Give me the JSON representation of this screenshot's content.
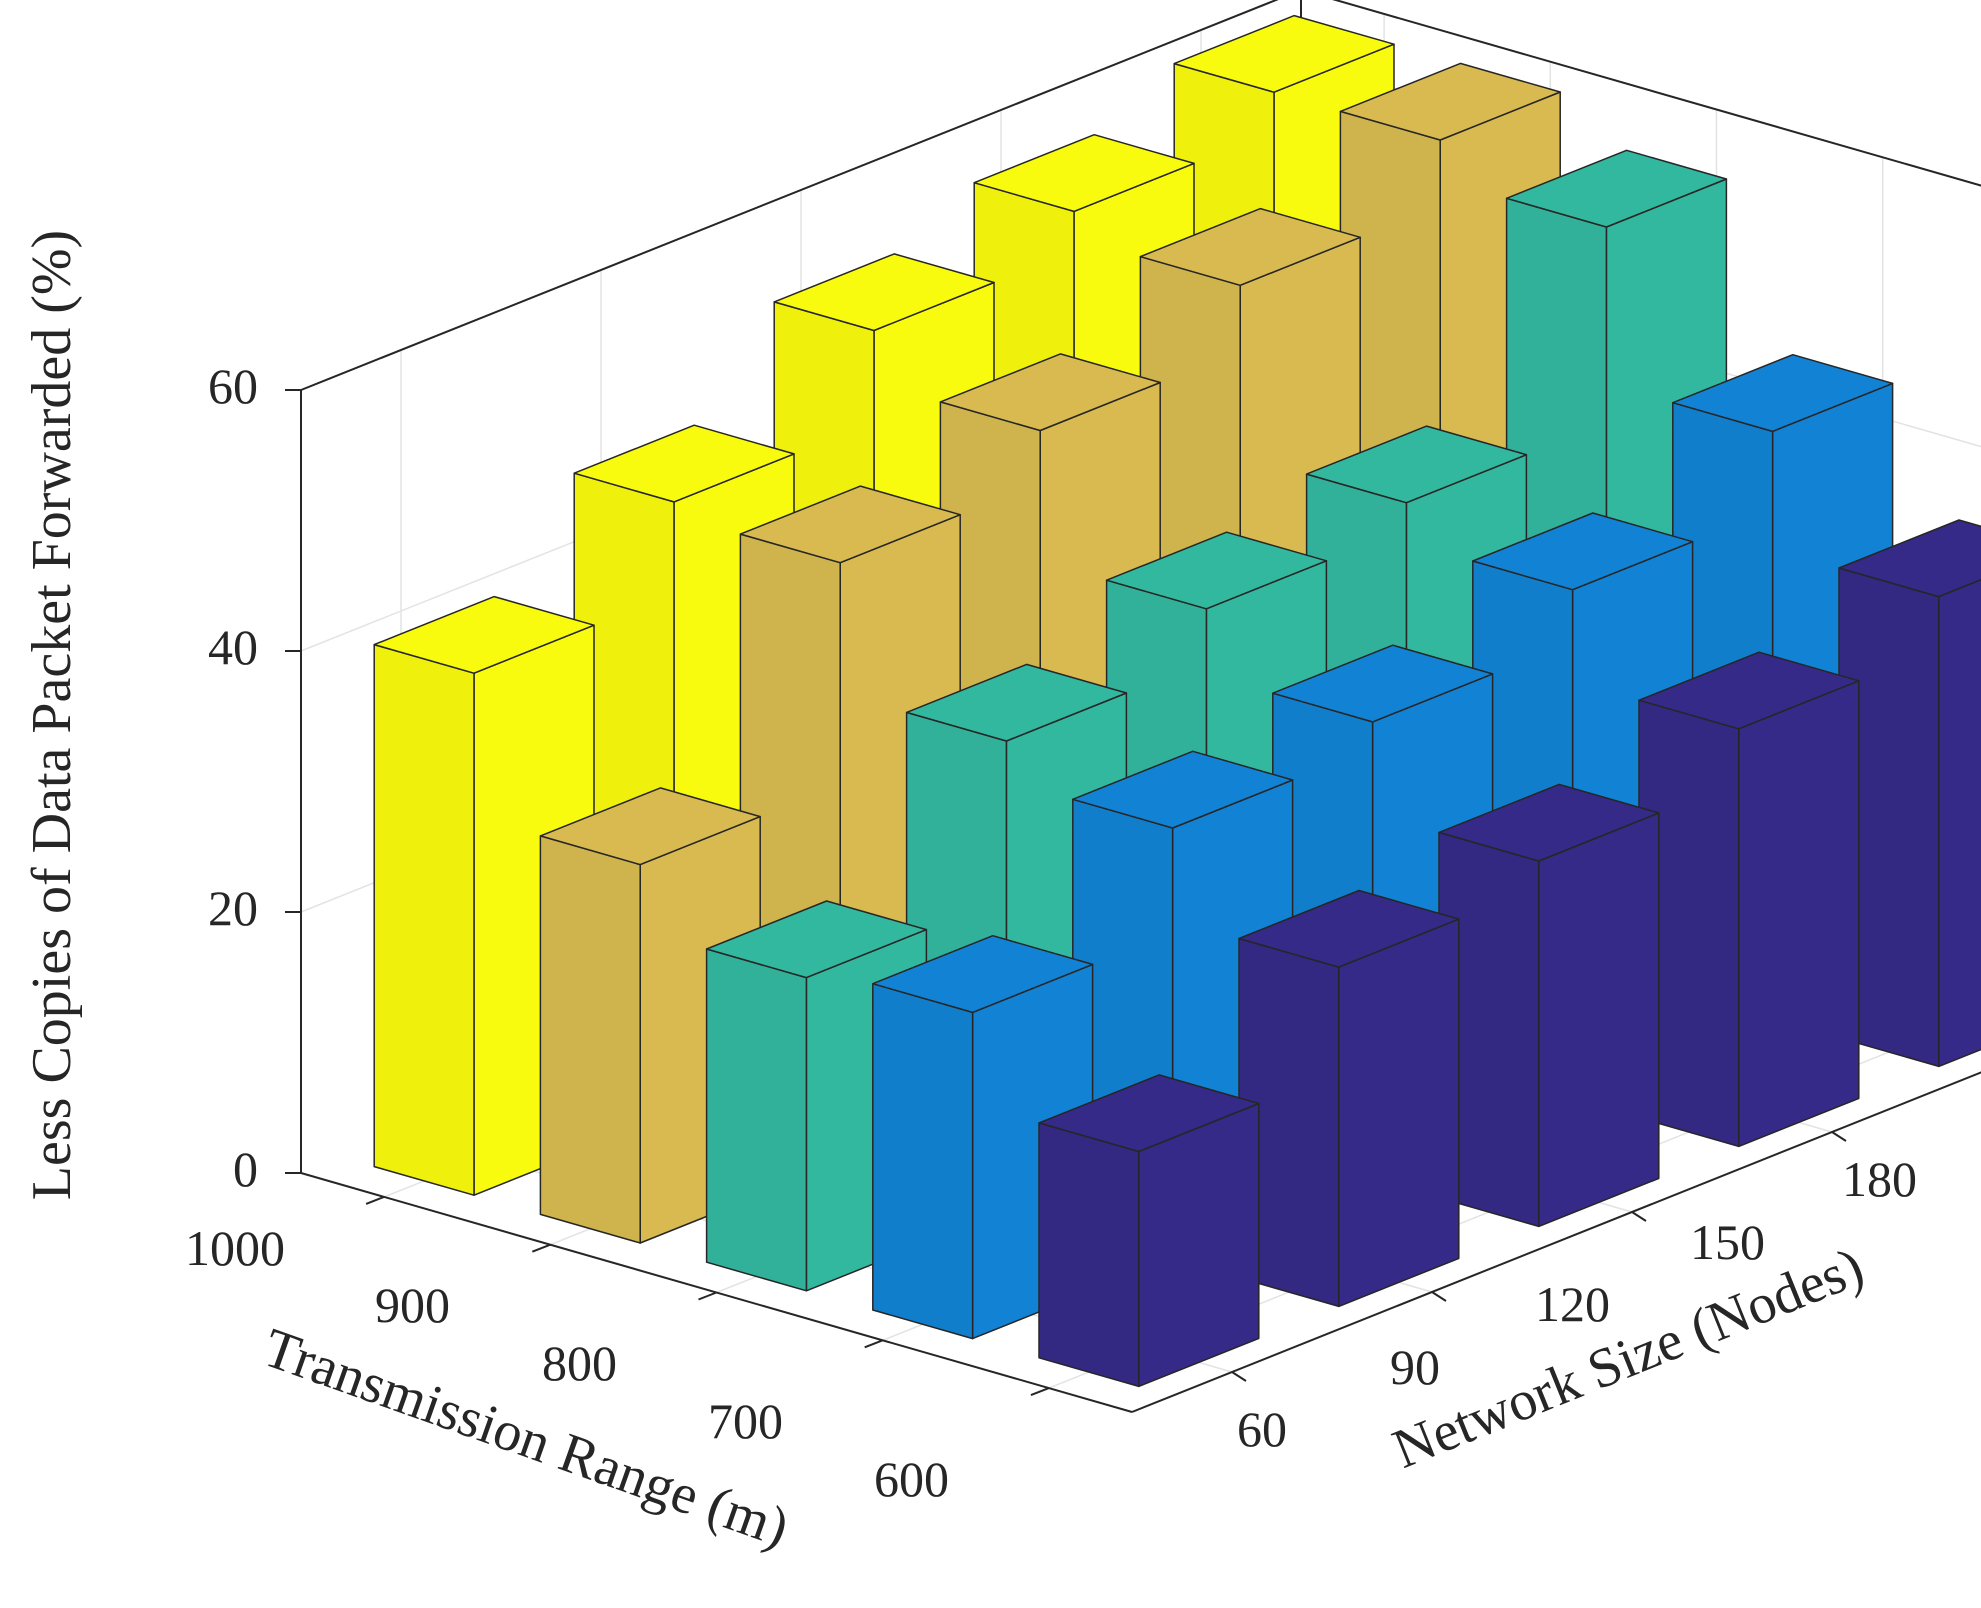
{
  "chart_data": {
    "type": "bar3d",
    "title": "",
    "zlabel": "Less Copies of Data Packet Forwarded (%)",
    "xlabel": "Transmission Range (m)",
    "ylabel": "Network Size (Nodes)",
    "x_ticks": [
      "1000",
      "900",
      "800",
      "700",
      "600"
    ],
    "y_ticks": [
      "60",
      "90",
      "120",
      "150",
      "180"
    ],
    "z_ticks": [
      "0",
      "20",
      "40",
      "60"
    ],
    "zlim": [
      0,
      60
    ],
    "grid": true,
    "series": [
      {
        "name": "600",
        "color": "#352A87",
        "values": [
          18,
          26,
          28,
          32,
          36
        ]
      },
      {
        "name": "700",
        "color": "#1283D4",
        "values": [
          25,
          33,
          35,
          39,
          45
        ]
      },
      {
        "name": "800",
        "color": "#33B8A0",
        "values": [
          24,
          36,
          40,
          42,
          57
        ]
      },
      {
        "name": "900",
        "color": "#D8BA50",
        "values": [
          29,
          46,
          50,
          55,
          60
        ]
      },
      {
        "name": "1000",
        "color": "#F9FB0E",
        "values": [
          40,
          47,
          54,
          57,
          60
        ]
      }
    ]
  }
}
